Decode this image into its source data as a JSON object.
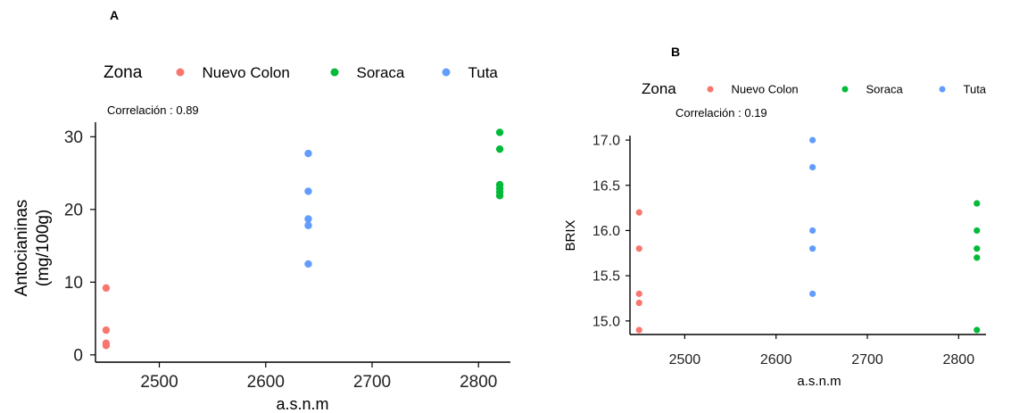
{
  "chart_data": [
    {
      "panel": "A",
      "type": "scatter",
      "legend": {
        "title": "Zona",
        "position": "top"
      },
      "correlation": {
        "label": "Correlación",
        "separator": ":",
        "value": "0.89"
      },
      "xlabel": "a.s.n.m",
      "ylabel": [
        "Antocianinas",
        "(mg/100g)"
      ],
      "xlim": [
        2440,
        2830
      ],
      "ylim": [
        -1,
        32
      ],
      "xticks": [
        2500,
        2600,
        2700,
        2800
      ],
      "yticks": [
        0,
        10,
        20,
        30
      ],
      "grid": false,
      "series": [
        {
          "name": "Nuevo Colon",
          "color": "#F8766D",
          "points": [
            [
              2450,
              9.2
            ],
            [
              2450,
              3.4
            ],
            [
              2450,
              1.6
            ],
            [
              2450,
              1.3
            ]
          ]
        },
        {
          "name": "Soraca",
          "color": "#00BA38",
          "points": [
            [
              2820,
              30.6
            ],
            [
              2820,
              28.3
            ],
            [
              2820,
              23.4
            ],
            [
              2820,
              22.9
            ],
            [
              2820,
              22.4
            ],
            [
              2820,
              21.9
            ]
          ]
        },
        {
          "name": "Tuta",
          "color": "#619CFF",
          "points": [
            [
              2640,
              27.7
            ],
            [
              2640,
              22.5
            ],
            [
              2640,
              18.7
            ],
            [
              2640,
              17.8
            ],
            [
              2640,
              12.5
            ]
          ]
        }
      ]
    },
    {
      "panel": "B",
      "type": "scatter",
      "legend": {
        "title": "Zona",
        "position": "top"
      },
      "correlation": {
        "label": "Correlación",
        "separator": ":",
        "value": "0.19"
      },
      "xlabel": "a.s.n.m",
      "ylabel": [
        "BRIX"
      ],
      "xlim": [
        2440,
        2830
      ],
      "ylim": [
        14.85,
        17.05
      ],
      "xticks": [
        2500,
        2600,
        2700,
        2800
      ],
      "yticks": [
        15.0,
        15.5,
        16.0,
        16.5,
        17.0
      ],
      "yticks_decimals": 1,
      "grid": false,
      "series": [
        {
          "name": "Nuevo Colon",
          "color": "#F8766D",
          "points": [
            [
              2450,
              16.2
            ],
            [
              2450,
              15.8
            ],
            [
              2450,
              15.3
            ],
            [
              2450,
              15.2
            ],
            [
              2450,
              14.9
            ]
          ]
        },
        {
          "name": "Soraca",
          "color": "#00BA38",
          "points": [
            [
              2820,
              16.3
            ],
            [
              2820,
              16.0
            ],
            [
              2820,
              15.8
            ],
            [
              2820,
              15.7
            ],
            [
              2820,
              14.9
            ]
          ]
        },
        {
          "name": "Tuta",
          "color": "#619CFF",
          "points": [
            [
              2640,
              17.0
            ],
            [
              2640,
              16.7
            ],
            [
              2640,
              16.0
            ],
            [
              2640,
              15.8
            ],
            [
              2640,
              15.3
            ]
          ]
        }
      ]
    }
  ]
}
